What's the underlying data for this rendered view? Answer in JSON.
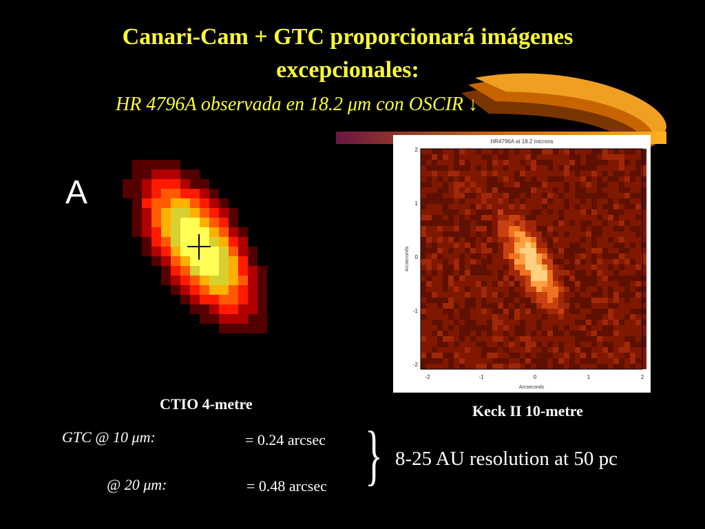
{
  "slide": {
    "title_line1": "Canari-Cam + GTC proporcionará imágenes",
    "title_line2": "excepcionales:",
    "subtitle": "HR 4796A observada en 18.2 μm con OSCIR",
    "subtitle_arrow": "↓",
    "colors": {
      "title": "#ffff33",
      "text": "#ffffff",
      "background": "#000000"
    }
  },
  "ctio": {
    "panel_letter": "A",
    "caption": "CTIO 4-metre"
  },
  "keck": {
    "caption": "Keck II 10-metre",
    "plot_title": "HR4796A at 18.2 microns",
    "xlabel": "Arcseconds",
    "ylabel": "Arcseconds",
    "xticks": [
      "-2",
      "-1",
      "0",
      "1",
      "2"
    ],
    "yticks": [
      "2",
      "1",
      "0",
      "-1",
      "-2"
    ]
  },
  "resolution": {
    "row1_label": "GTC @ 10 μm:",
    "row1_value": "= 0.24 arcsec",
    "row2_label": "@ 20 μm:",
    "row2_value": "= 0.48 arcsec",
    "brace": "}",
    "summary": "8-25 AU resolution at 50 pc"
  }
}
